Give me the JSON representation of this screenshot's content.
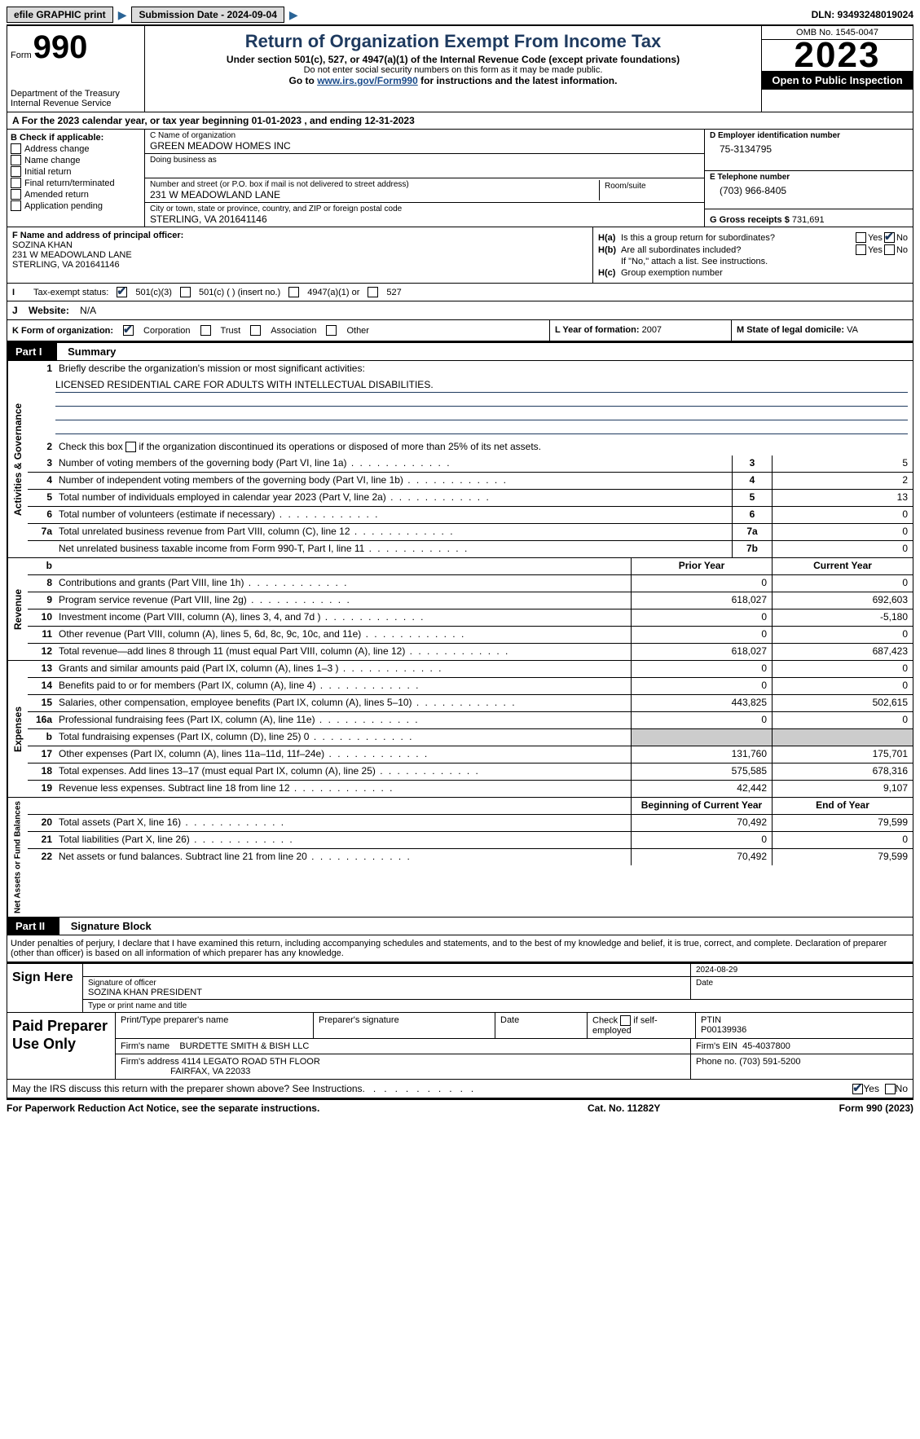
{
  "topbar": {
    "efile": "efile GRAPHIC print",
    "submission": "Submission Date - 2024-09-04",
    "dln": "DLN: 93493248019024"
  },
  "header": {
    "form_label": "Form",
    "form_number": "990",
    "dept": "Department of the Treasury\nInternal Revenue Service",
    "title": "Return of Organization Exempt From Income Tax",
    "under": "Under section 501(c), 527, or 4947(a)(1) of the Internal Revenue Code (except private foundations)",
    "ssn": "Do not enter social security numbers on this form as it may be made public.",
    "goto_pre": "Go to ",
    "goto_link": "www.irs.gov/Form990",
    "goto_post": " for instructions and the latest information.",
    "omb": "OMB No. 1545-0047",
    "year": "2023",
    "open": "Open to Public Inspection"
  },
  "period": "For the 2023 calendar year, or tax year beginning 01-01-2023   , and ending 12-31-2023",
  "b": {
    "label": "B Check if applicable:",
    "items": [
      "Address change",
      "Name change",
      "Initial return",
      "Final return/terminated",
      "Amended return",
      "Application pending"
    ]
  },
  "c": {
    "name_lbl": "C Name of organization",
    "name": "GREEN MEADOW HOMES INC",
    "dba_lbl": "Doing business as",
    "street_lbl": "Number and street (or P.O. box if mail is not delivered to street address)",
    "street": "231 W MEADOWLAND LANE",
    "room_lbl": "Room/suite",
    "city_lbl": "City or town, state or province, country, and ZIP or foreign postal code",
    "city": "STERLING, VA  201641146"
  },
  "d": {
    "lbl": "D Employer identification number",
    "val": "75-3134795"
  },
  "e": {
    "lbl": "E Telephone number",
    "val": "(703) 966-8405"
  },
  "g": {
    "lbl": "G Gross receipts $",
    "val": "731,691"
  },
  "f": {
    "lbl": "F  Name and address of principal officer:",
    "name": "SOZINA KHAN",
    "addr1": "231 W MEADOWLAND LANE",
    "addr2": "STERLING, VA  201641146"
  },
  "h": {
    "a": "Is this a group return for subordinates?",
    "b": "Are all subordinates included?",
    "b_note": "If \"No,\" attach a list. See instructions.",
    "c": "Group exemption number"
  },
  "i": {
    "lbl": "Tax-exempt status:",
    "opt1": "501(c)(3)",
    "opt2": "501(c) (  ) (insert no.)",
    "opt3": "4947(a)(1) or",
    "opt4": "527"
  },
  "j": {
    "lbl": "Website:",
    "val": "N/A"
  },
  "k": {
    "lbl": "K Form of organization:",
    "opts": [
      "Corporation",
      "Trust",
      "Association",
      "Other"
    ]
  },
  "l": {
    "lbl": "L Year of formation:",
    "val": "2007"
  },
  "m": {
    "lbl": "M State of legal domicile:",
    "val": "VA"
  },
  "part1": {
    "hdr": "Part I",
    "title": "Summary"
  },
  "s1": {
    "l1": "Briefly describe the organization's mission or most significant activities:",
    "mission": "LICENSED RESIDENTIAL CARE FOR ADULTS WITH INTELLECTUAL DISABILITIES.",
    "l2": "Check this box      if the organization discontinued its operations or disposed of more than 25% of its net assets.",
    "rows": [
      {
        "n": "3",
        "d": "Number of voting members of the governing body (Part VI, line 1a)",
        "b": "3",
        "v": "5"
      },
      {
        "n": "4",
        "d": "Number of independent voting members of the governing body (Part VI, line 1b)",
        "b": "4",
        "v": "2"
      },
      {
        "n": "5",
        "d": "Total number of individuals employed in calendar year 2023 (Part V, line 2a)",
        "b": "5",
        "v": "13"
      },
      {
        "n": "6",
        "d": "Total number of volunteers (estimate if necessary)",
        "b": "6",
        "v": "0"
      },
      {
        "n": "7a",
        "d": "Total unrelated business revenue from Part VIII, column (C), line 12",
        "b": "7a",
        "v": "0"
      },
      {
        "n": "",
        "d": "Net unrelated business taxable income from Form 990-T, Part I, line 11",
        "b": "7b",
        "v": "0"
      }
    ]
  },
  "cols": {
    "prior": "Prior Year",
    "current": "Current Year",
    "begin": "Beginning of Current Year",
    "end": "End of Year"
  },
  "rev": [
    {
      "n": "8",
      "d": "Contributions and grants (Part VIII, line 1h)",
      "p": "0",
      "c": "0"
    },
    {
      "n": "9",
      "d": "Program service revenue (Part VIII, line 2g)",
      "p": "618,027",
      "c": "692,603"
    },
    {
      "n": "10",
      "d": "Investment income (Part VIII, column (A), lines 3, 4, and 7d )",
      "p": "0",
      "c": "-5,180"
    },
    {
      "n": "11",
      "d": "Other revenue (Part VIII, column (A), lines 5, 6d, 8c, 9c, 10c, and 11e)",
      "p": "0",
      "c": "0"
    },
    {
      "n": "12",
      "d": "Total revenue—add lines 8 through 11 (must equal Part VIII, column (A), line 12)",
      "p": "618,027",
      "c": "687,423"
    }
  ],
  "exp": [
    {
      "n": "13",
      "d": "Grants and similar amounts paid (Part IX, column (A), lines 1–3 )",
      "p": "0",
      "c": "0"
    },
    {
      "n": "14",
      "d": "Benefits paid to or for members (Part IX, column (A), line 4)",
      "p": "0",
      "c": "0"
    },
    {
      "n": "15",
      "d": "Salaries, other compensation, employee benefits (Part IX, column (A), lines 5–10)",
      "p": "443,825",
      "c": "502,615"
    },
    {
      "n": "16a",
      "d": "Professional fundraising fees (Part IX, column (A), line 11e)",
      "p": "0",
      "c": "0"
    },
    {
      "n": "b",
      "d": "Total fundraising expenses (Part IX, column (D), line 25) 0",
      "shade": true
    },
    {
      "n": "17",
      "d": "Other expenses (Part IX, column (A), lines 11a–11d, 11f–24e)",
      "p": "131,760",
      "c": "175,701"
    },
    {
      "n": "18",
      "d": "Total expenses. Add lines 13–17 (must equal Part IX, column (A), line 25)",
      "p": "575,585",
      "c": "678,316"
    },
    {
      "n": "19",
      "d": "Revenue less expenses. Subtract line 18 from line 12",
      "p": "42,442",
      "c": "9,107"
    }
  ],
  "net": [
    {
      "n": "20",
      "d": "Total assets (Part X, line 16)",
      "p": "70,492",
      "c": "79,599"
    },
    {
      "n": "21",
      "d": "Total liabilities (Part X, line 26)",
      "p": "0",
      "c": "0"
    },
    {
      "n": "22",
      "d": "Net assets or fund balances. Subtract line 21 from line 20",
      "p": "70,492",
      "c": "79,599"
    }
  ],
  "part2": {
    "hdr": "Part II",
    "title": "Signature Block"
  },
  "sig_text": "Under penalties of perjury, I declare that I have examined this return, including accompanying schedules and statements, and to the best of my knowledge and belief, it is true, correct, and complete. Declaration of preparer (other than officer) is based on all information of which preparer has any knowledge.",
  "sign": {
    "here": "Sign Here",
    "sig_lbl": "Signature of officer",
    "name": "SOZINA KHAN  PRESIDENT",
    "type_lbl": "Type or print name and title",
    "date_lbl": "Date",
    "date": "2024-08-29"
  },
  "prep": {
    "title": "Paid Preparer Use Only",
    "name_lbl": "Print/Type preparer's name",
    "sig_lbl": "Preparer's signature",
    "date_lbl": "Date",
    "check_lbl": "Check       if self-employed",
    "ptin_lbl": "PTIN",
    "ptin": "P00139936",
    "firm_name_lbl": "Firm's name",
    "firm_name": "BURDETTE SMITH & BISH LLC",
    "firm_ein_lbl": "Firm's EIN",
    "firm_ein": "45-4037800",
    "firm_addr_lbl": "Firm's address",
    "firm_addr1": "4114 LEGATO ROAD 5TH FLOOR",
    "firm_addr2": "FAIRFAX, VA  22033",
    "phone_lbl": "Phone no.",
    "phone": "(703) 591-5200"
  },
  "discuss": "May the IRS discuss this return with the preparer shown above? See Instructions.",
  "footer": {
    "pra": "For Paperwork Reduction Act Notice, see the separate instructions.",
    "cat": "Cat. No. 11282Y",
    "form": "Form 990 (2023)"
  },
  "yn": {
    "yes": "Yes",
    "no": "No"
  }
}
